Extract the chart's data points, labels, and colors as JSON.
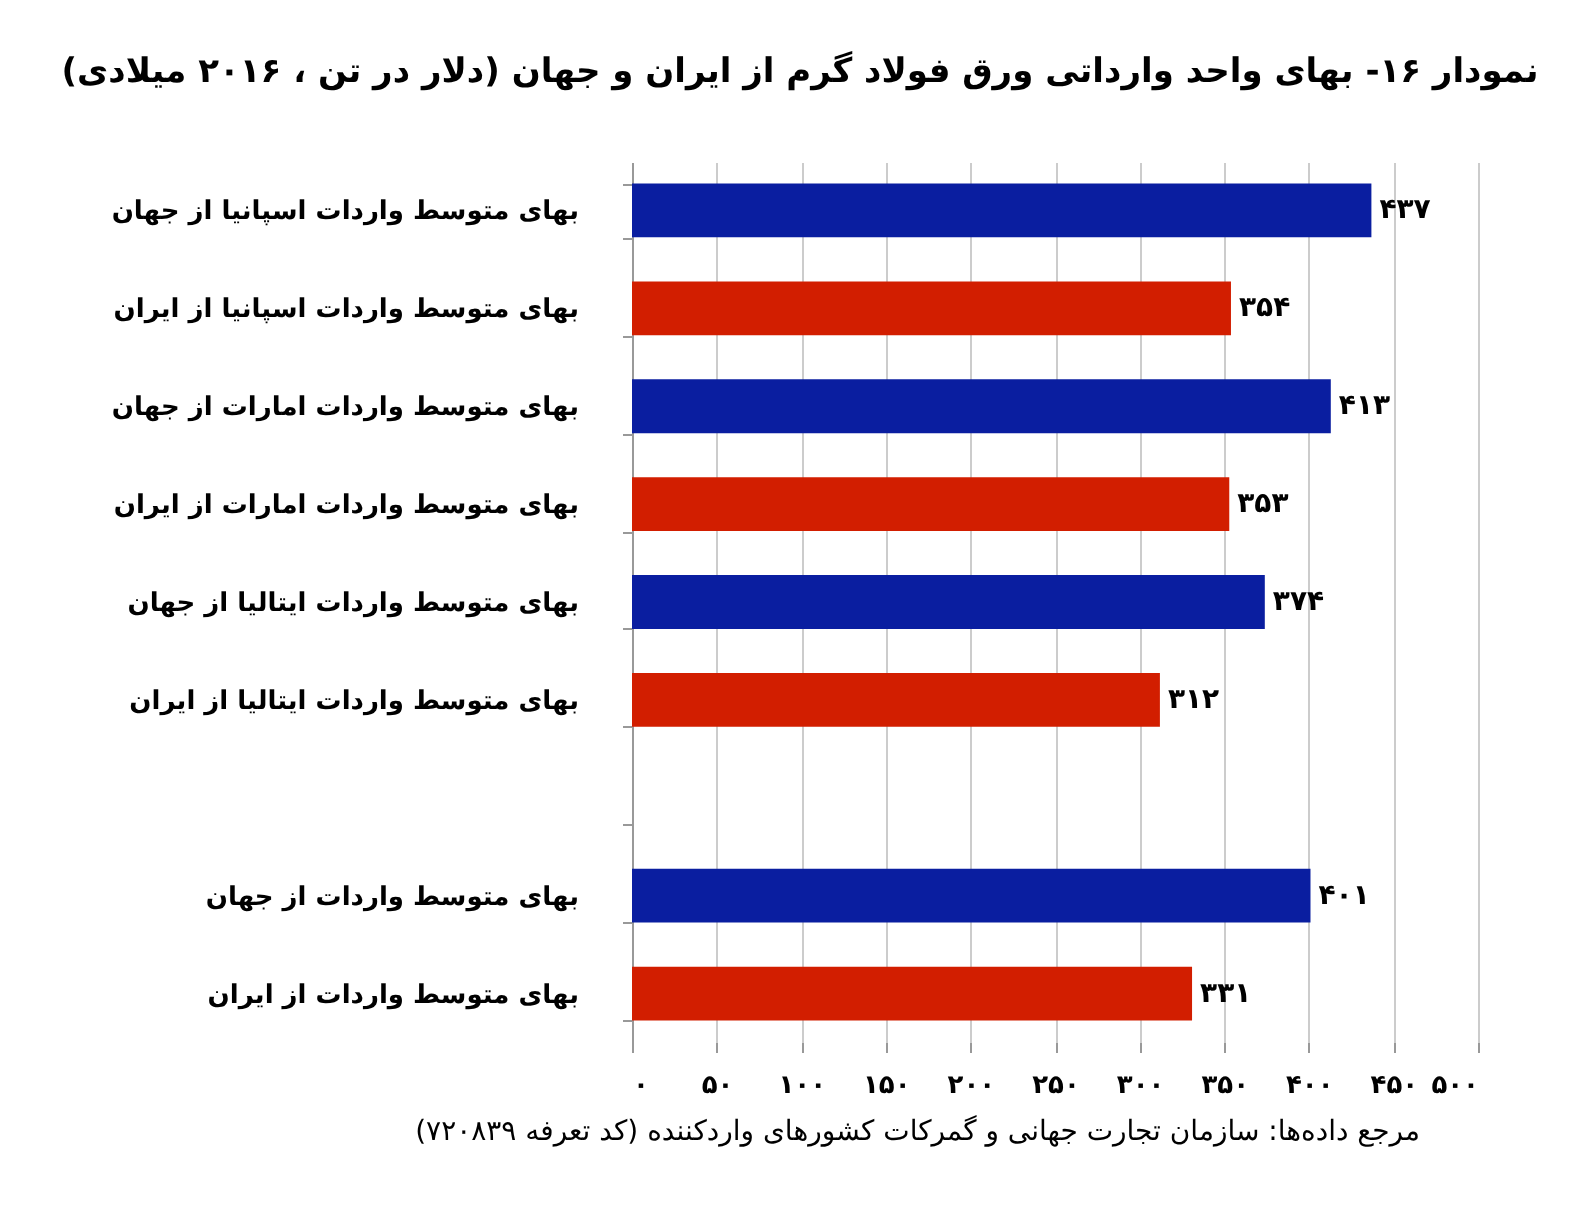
{
  "chart_data": {
    "type": "bar",
    "orientation": "horizontal",
    "title": "نمودار ۱۶- بهای واحد وارداتی ورق فولاد گرم از ایران و جهان (دلار در تن ، ۲۰۱۶ میلادی)",
    "categories": [
      "بهای متوسط واردات اسپانیا از جهان",
      "بهای متوسط واردات اسپانیا از ایران",
      "بهای متوسط واردات امارات از جهان",
      "بهای متوسط واردات امارات از ایران",
      "بهای متوسط واردات ایتالیا از جهان",
      "بهای متوسط واردات ایتالیا از ایران",
      null,
      "بهای متوسط واردات از جهان",
      "بهای متوسط واردات از ایران"
    ],
    "values": [
      437,
      354,
      413,
      353,
      374,
      312,
      null,
      401,
      331
    ],
    "colors": [
      "#0a1ea0",
      "#d21e00",
      "#0a1ea0",
      "#d21e00",
      "#0a1ea0",
      "#d21e00",
      null,
      "#0a1ea0",
      "#d21e00"
    ],
    "value_labels": [
      "۴۳۷",
      "۳۵۴",
      "۴۱۳",
      "۳۵۳",
      "۳۷۴",
      "۳۱۲",
      null,
      "۴۰۱",
      "۳۳۱"
    ],
    "xlim": [
      0,
      500
    ],
    "xticks": [
      {
        "value": 0,
        "label": "۰"
      },
      {
        "value": 50,
        "label": "۵۰"
      },
      {
        "value": 100,
        "label": "۱۰۰"
      },
      {
        "value": 150,
        "label": "۱۵۰"
      },
      {
        "value": 200,
        "label": "۲۰۰"
      },
      {
        "value": 250,
        "label": "۲۵۰"
      },
      {
        "value": 300,
        "label": "۳۰۰"
      },
      {
        "value": 350,
        "label": "۳۵۰"
      },
      {
        "value": 400,
        "label": "۴۰۰"
      },
      {
        "value": 450,
        "label": "۴۵۰"
      },
      {
        "value": 500,
        "label": "۵۰۰"
      }
    ],
    "grid": "x",
    "annotations": [
      "مرجع داده‌ها: سازمان تجارت جهانی و گمرکات کشورهای واردکننده (کد تعرفه ۷۲۰۸۳۹)"
    ]
  }
}
